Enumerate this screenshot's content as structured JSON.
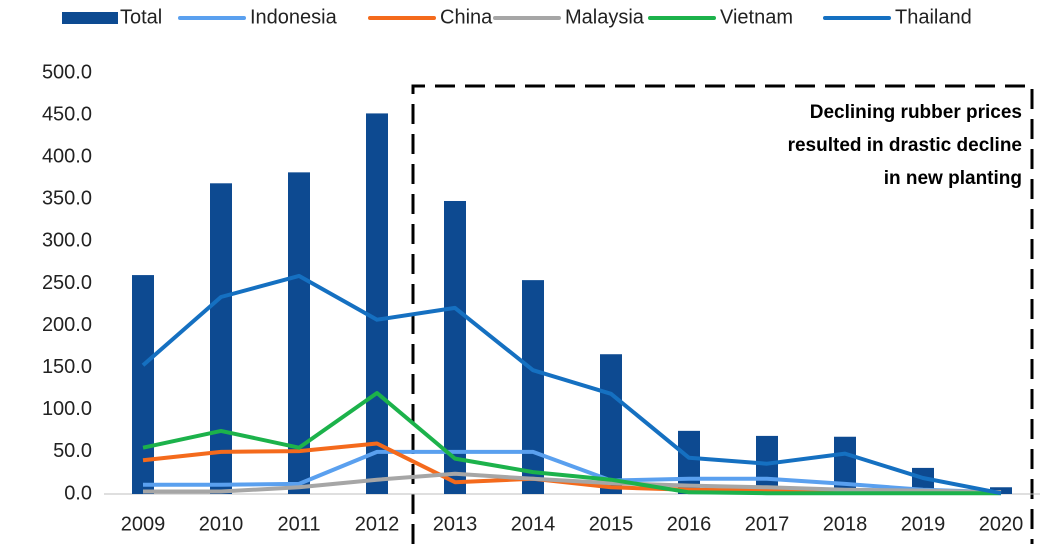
{
  "chart_data": {
    "type": "bar",
    "categories": [
      "2009",
      "2010",
      "2011",
      "2012",
      "2013",
      "2014",
      "2015",
      "2016",
      "2017",
      "2018",
      "2019",
      "2020"
    ],
    "series": [
      {
        "name": "Total",
        "type": "bar",
        "color": "#0d4a91",
        "values": [
          260,
          369,
          382,
          452,
          348,
          254,
          166,
          75,
          69,
          68,
          31,
          8
        ]
      },
      {
        "name": "Indonesia",
        "type": "line",
        "color": "#5aa0ef",
        "values": [
          11,
          11,
          12,
          50,
          50,
          50,
          16,
          18,
          18,
          12,
          5,
          2
        ]
      },
      {
        "name": "China",
        "type": "line",
        "color": "#f46a1c",
        "values": [
          40,
          50,
          51,
          60,
          14,
          18,
          8,
          5,
          4,
          3,
          3,
          2
        ]
      },
      {
        "name": "Malaysia",
        "type": "line",
        "color": "#a6a6a6",
        "values": [
          3,
          3,
          8,
          17,
          24,
          18,
          13,
          10,
          8,
          5,
          4,
          2
        ]
      },
      {
        "name": "Vietnam",
        "type": "line",
        "color": "#1cb24b",
        "values": [
          55,
          75,
          55,
          120,
          42,
          26,
          17,
          2,
          1,
          1,
          1,
          1
        ]
      },
      {
        "name": "Thailand",
        "type": "line",
        "color": "#1570c1",
        "values": [
          153,
          234,
          259,
          207,
          221,
          147,
          119,
          43,
          36,
          48,
          19,
          1
        ]
      }
    ],
    "ylim": [
      0,
      500
    ],
    "yticks": [
      {
        "value": 0,
        "label": "0.0"
      },
      {
        "value": 50,
        "label": "50.0"
      },
      {
        "value": 100,
        "label": "100.0"
      },
      {
        "value": 150,
        "label": "150.0"
      },
      {
        "value": 200,
        "label": "200.0"
      },
      {
        "value": 250,
        "label": "250.0"
      },
      {
        "value": 300,
        "label": "300.0"
      },
      {
        "value": 350,
        "label": "350.0"
      },
      {
        "value": 400,
        "label": "400.0"
      },
      {
        "value": 450,
        "label": "450.0"
      },
      {
        "value": 500,
        "label": "500.0"
      }
    ],
    "grid": false,
    "legend": "top",
    "annotation": [
      "Declining rubber prices",
      "resulted in drastic decline",
      "in new planting"
    ]
  }
}
